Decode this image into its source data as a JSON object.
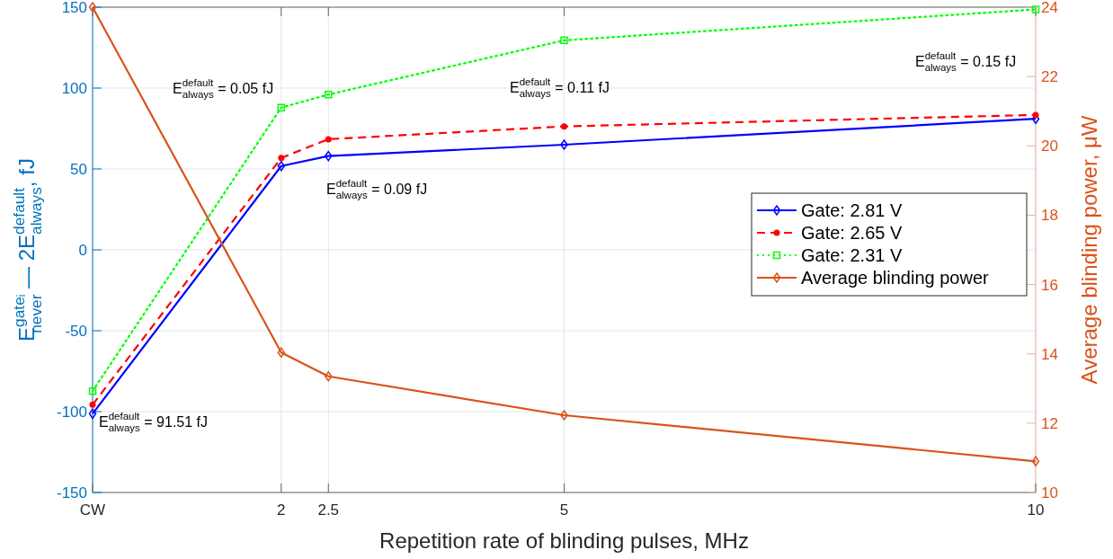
{
  "chart_data": {
    "type": "line",
    "xlabel": "Repetition rate of blinding pulses, MHz",
    "ylabel": "E$^{gateᵢ}$$_{never}$ — 2E$^{default}$$_{always}$, fJ",
    "y2label": "Average blinding power, μW",
    "x": [
      0,
      2,
      2.5,
      5,
      10
    ],
    "xlim": [
      0,
      10
    ],
    "xticks": [
      {
        "value": 0,
        "label": "CW"
      },
      2,
      2.5,
      5,
      10
    ],
    "ylim": [
      -150,
      150
    ],
    "yticks": [
      -150,
      -100,
      -50,
      0,
      50,
      100,
      150
    ],
    "y2lim": [
      10,
      24
    ],
    "y2ticks": [
      10,
      12,
      14,
      16,
      18,
      20,
      22,
      24
    ],
    "grid": true,
    "legend": "right",
    "series": [
      {
        "name": "Gate: 2.81 V",
        "color": "#0000ff",
        "marker": "diamond",
        "line_style": "solid",
        "values": [
          -101.3,
          51.8,
          58,
          65,
          81
        ]
      },
      {
        "name": "Gate: 2.65 V",
        "color": "#ff0000",
        "marker": "circle",
        "line_style": "dashed",
        "values": [
          -95.7,
          56.8,
          68.4,
          76.3,
          83.4
        ]
      },
      {
        "name": "Gate: 2.31 V",
        "color": "#00ff00",
        "marker": "square",
        "line_style": "dotted",
        "values": [
          -87.3,
          87.9,
          96,
          129.5,
          148.6
        ]
      },
      {
        "name": "Average blinding power",
        "color": "#d95319",
        "marker": "diamond",
        "line_style": "solid",
        "axis": "y2",
        "values": [
          24,
          14.04,
          13.35,
          12.23,
          10.9
        ]
      }
    ],
    "annotations": [
      "E$^{default}$$_{always}$ = 91.51 fJ",
      "E$^{default}$$_{always}$ = 0.05 fJ",
      "E$^{default}$$_{always}$ = 0.09 fJ",
      "E$^{default}$$_{always}$ = 0.11 fJ",
      "E$^{default}$$_{always}$ = 0.15 fJ"
    ]
  }
}
